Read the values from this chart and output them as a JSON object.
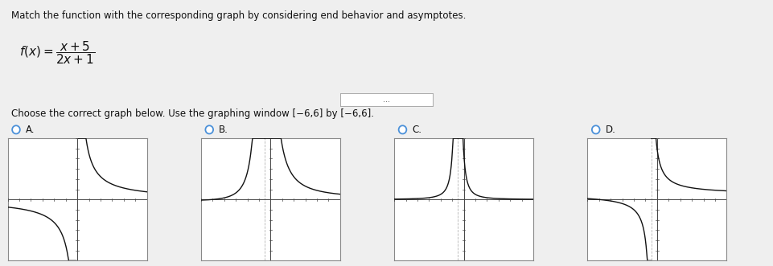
{
  "title_text": "Match the function with the corresponding graph by considering end behavior and asymptotes.",
  "choose_text": "Choose the correct graph below. Use the graphing window [−6,6] by [−6,6].",
  "graph_labels": [
    "A.",
    "B.",
    "C.",
    "D."
  ],
  "xmin": -6,
  "xmax": 6,
  "ymin": -6,
  "ymax": 6,
  "background_color": "#efefef",
  "graph_bg": "#ffffff",
  "curve_color": "#111111",
  "axis_color": "#444444",
  "tick_color": "#444444",
  "radio_color": "#4a90d9",
  "header_bg": "#e8f4f8",
  "divider_color": "#bbbbbb"
}
